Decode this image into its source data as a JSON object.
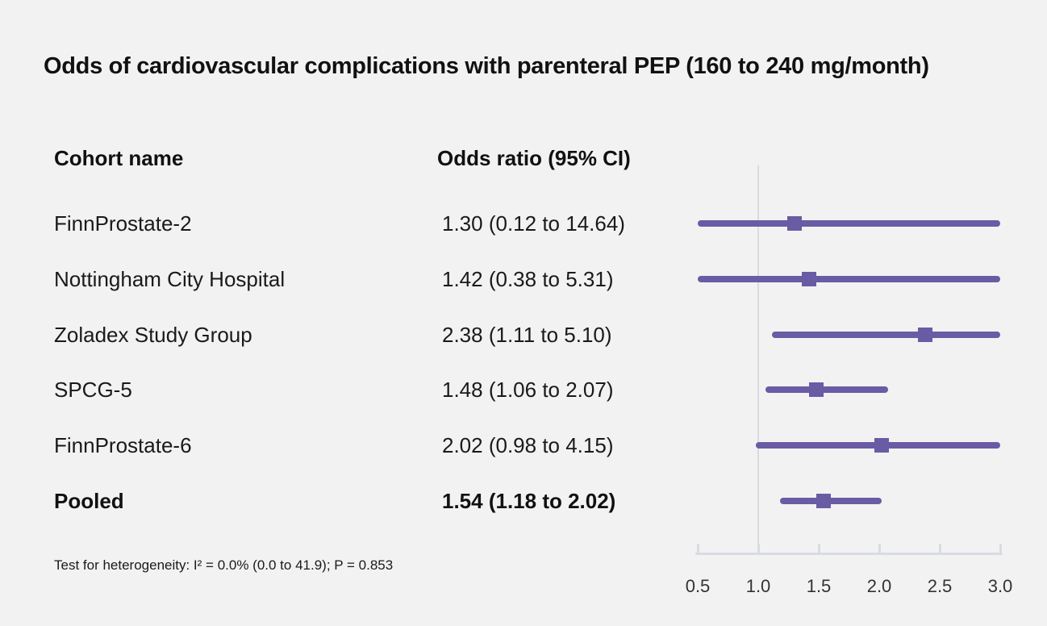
{
  "title": "Odds of cardiovascular complications with parenteral PEP (160 to 240 mg/month)",
  "table": {
    "headers": {
      "cohort": "Cohort name",
      "odds_ratio": "Odds ratio (95% CI)"
    },
    "rows": [
      {
        "cohort": "FinnProstate-2",
        "value_text": "1.30 (0.12 to 14.64)",
        "bold": false
      },
      {
        "cohort": "Nottingham City Hospital",
        "value_text": "1.42 (0.38 to 5.31)",
        "bold": false
      },
      {
        "cohort": "Zoladex Study Group",
        "value_text": "2.38 (1.11 to 5.10)",
        "bold": false
      },
      {
        "cohort": "SPCG-5",
        "value_text": "1.48 (1.06 to 2.07)",
        "bold": false
      },
      {
        "cohort": "FinnProstate-6",
        "value_text": "2.02 (0.98 to 4.15)",
        "bold": false
      },
      {
        "cohort": "Pooled",
        "value_text": "1.54 (1.18 to 2.02)",
        "bold": true
      }
    ]
  },
  "footnote": "Test for heterogeneity: I² = 0.0% (0.0 to 41.9); P = 0.853",
  "colors": {
    "background": "#f2f2f2",
    "marker_purple": "#6a5ba5",
    "axis_gray": "#d8dbe2",
    "text": "#1a1a1a"
  },
  "chart_data": {
    "type": "forest",
    "title": "Odds of cardiovascular complications with parenteral PEP (160 to 240 mg/month)",
    "xlabel": "Odds ratio",
    "xlim": [
      0.5,
      3.0
    ],
    "x_ticks": [
      0.5,
      1.0,
      1.5,
      2.0,
      2.5,
      3.0
    ],
    "x_tick_labels": [
      "0.5",
      "1.0",
      "1.5",
      "2.0",
      "2.5",
      "3.0"
    ],
    "reference_line_x": 1.0,
    "clip_ci_to_xlim": true,
    "grid": false,
    "legend": false,
    "rows": [
      {
        "label": "FinnProstate-2",
        "or": 1.3,
        "ci_low": 0.12,
        "ci_high": 14.64,
        "pooled": false
      },
      {
        "label": "Nottingham City Hospital",
        "or": 1.42,
        "ci_low": 0.38,
        "ci_high": 5.31,
        "pooled": false
      },
      {
        "label": "Zoladex Study Group",
        "or": 2.38,
        "ci_low": 1.11,
        "ci_high": 5.1,
        "pooled": false
      },
      {
        "label": "SPCG-5",
        "or": 1.48,
        "ci_low": 1.06,
        "ci_high": 2.07,
        "pooled": false
      },
      {
        "label": "FinnProstate-6",
        "or": 2.02,
        "ci_low": 0.98,
        "ci_high": 4.15,
        "pooled": false
      },
      {
        "label": "Pooled",
        "or": 1.54,
        "ci_low": 1.18,
        "ci_high": 2.02,
        "pooled": true
      }
    ],
    "heterogeneity": {
      "i_squared_pct": 0.0,
      "i_squared_ci": [
        0.0,
        41.9
      ],
      "p_value": 0.853
    }
  }
}
